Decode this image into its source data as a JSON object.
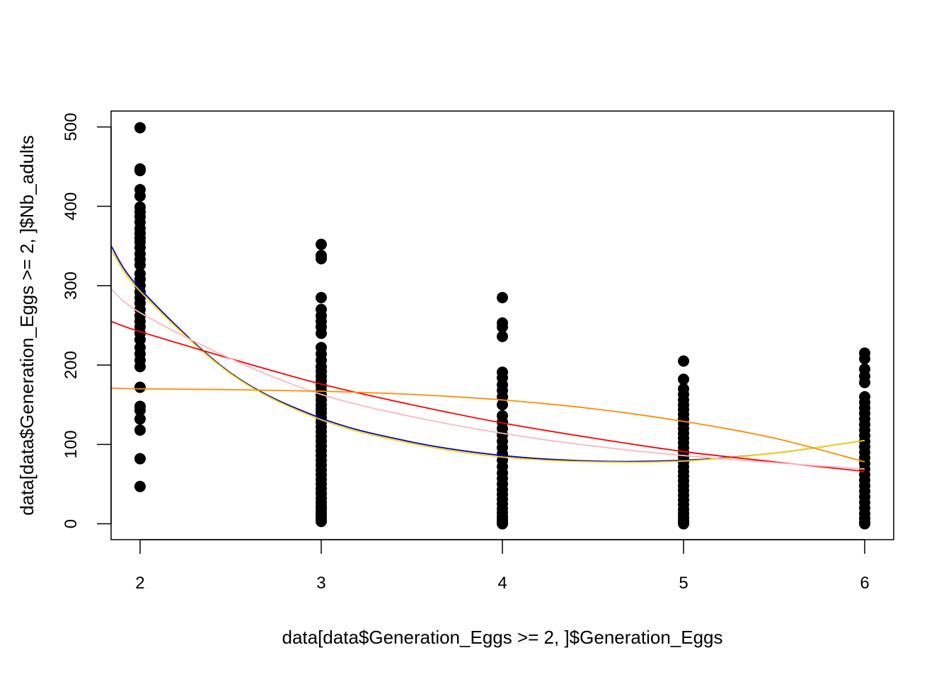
{
  "chart_data": {
    "type": "scatter",
    "title": "",
    "xlabel": "data[data$Generation_Eggs >= 2, ]$Generation_Eggs",
    "ylabel": "data[data$Generation_Eggs >= 2, ]$Nb_adults",
    "xlim": [
      1.84,
      6.16
    ],
    "ylim": [
      -20,
      520
    ],
    "x_ticks": [
      2,
      3,
      4,
      5,
      6
    ],
    "y_ticks": [
      0,
      100,
      200,
      300,
      400,
      500
    ],
    "grid": false,
    "legend": "none",
    "point_color": "#000000",
    "points": [
      {
        "x": 2,
        "values": [
          499,
          447,
          445,
          421,
          413,
          399,
          393,
          387,
          380,
          372,
          366,
          360,
          355,
          348,
          340,
          333,
          326,
          315,
          308,
          300,
          292,
          285,
          278,
          270,
          262,
          255,
          248,
          240,
          232,
          222,
          214,
          206,
          198,
          172,
          148,
          143,
          132,
          118,
          82,
          47
        ]
      },
      {
        "x": 3,
        "values": [
          352,
          338,
          334,
          285,
          270,
          262,
          255,
          248,
          240,
          222,
          214,
          206,
          198,
          192,
          186,
          180,
          174,
          168,
          162,
          156,
          150,
          145,
          140,
          134,
          128,
          122,
          116,
          110,
          104,
          98,
          92,
          86,
          80,
          74,
          68,
          62,
          56,
          50,
          44,
          38,
          32,
          27,
          22,
          18,
          14,
          10,
          6,
          3
        ]
      },
      {
        "x": 4,
        "values": [
          285,
          253,
          248,
          236,
          191,
          184,
          175,
          168,
          160,
          150,
          136,
          128,
          120,
          112,
          104,
          96,
          88,
          80,
          72,
          64,
          57,
          50,
          43,
          37,
          31,
          25,
          19,
          14,
          9,
          5,
          2,
          0
        ]
      },
      {
        "x": 5,
        "values": [
          205,
          182,
          170,
          163,
          156,
          150,
          144,
          138,
          132,
          126,
          120,
          114,
          108,
          102,
          96,
          90,
          84,
          78,
          72,
          66,
          60,
          54,
          48,
          42,
          36,
          30,
          24,
          18,
          13,
          8,
          4,
          1,
          0
        ]
      },
      {
        "x": 6,
        "values": [
          215,
          208,
          195,
          186,
          178,
          160,
          153,
          146,
          139,
          132,
          125,
          118,
          111,
          104,
          97,
          90,
          83,
          76,
          69,
          62,
          55,
          48,
          41,
          34,
          27,
          20,
          13,
          7,
          2,
          0
        ]
      }
    ],
    "series": [
      {
        "color": "#0000CD",
        "x": [
          1.84,
          2,
          2.5,
          3,
          3.5,
          4,
          4.5,
          5,
          5.5,
          6
        ],
        "values": [
          350,
          296,
          190,
          133,
          103,
          86,
          79,
          80,
          89,
          105
        ]
      },
      {
        "color": "#FFD700",
        "x": [
          1.84,
          2,
          2.5,
          3,
          3.5,
          4,
          4.5,
          5,
          5.5,
          6
        ],
        "values": [
          345,
          293,
          189,
          131,
          101,
          84,
          78,
          79,
          89,
          105
        ]
      },
      {
        "color": "#FF0000",
        "x": [
          1.84,
          2,
          2.5,
          3,
          3.5,
          4,
          4.5,
          5,
          5.5,
          6
        ],
        "values": [
          255,
          242,
          208,
          176,
          150,
          127,
          108,
          91,
          78,
          66
        ]
      },
      {
        "color": "#FFB6C1",
        "x": [
          1.84,
          2,
          2.5,
          3,
          3.5,
          4,
          4.5,
          5,
          5.5,
          6
        ],
        "values": [
          296,
          266,
          208,
          163,
          135,
          114,
          98,
          86,
          77,
          69
        ]
      },
      {
        "color": "#FF8C00",
        "x": [
          1.84,
          2,
          2.5,
          3,
          3.5,
          4,
          4.5,
          5,
          5.5,
          6
        ],
        "values": [
          171,
          170,
          169,
          167,
          163,
          156,
          145,
          129,
          108,
          78
        ]
      }
    ]
  }
}
